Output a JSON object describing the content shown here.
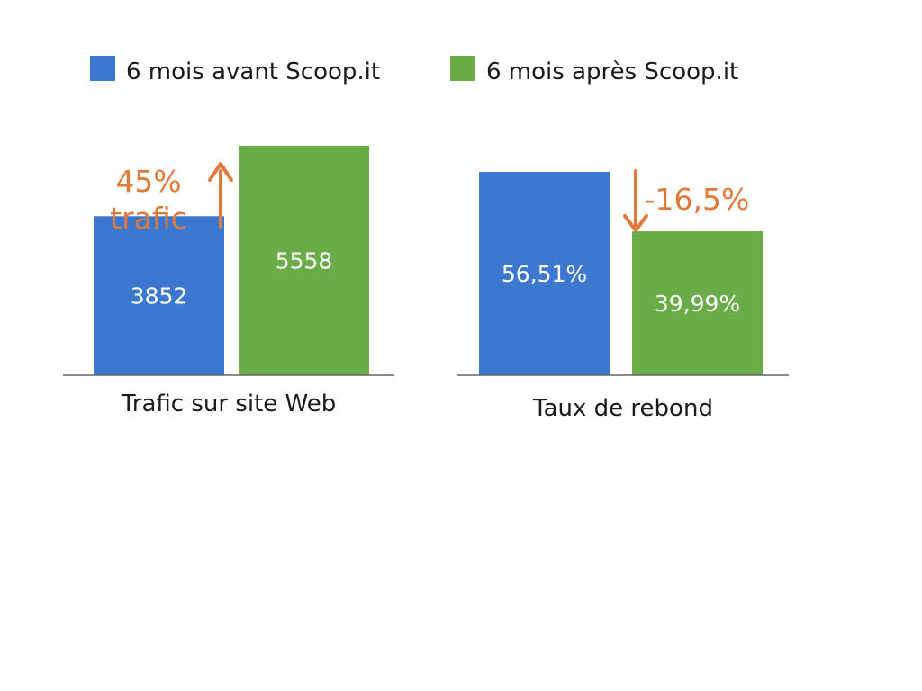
{
  "colors": {
    "before": "#3c78d0",
    "after": "#6aac48",
    "annotation": "#e07a3a",
    "baseline": "#666666"
  },
  "legend": [
    {
      "label": "6 mois avant Scoop.it",
      "color_key": "before"
    },
    {
      "label": "6 mois après Scoop.it",
      "color_key": "after"
    }
  ],
  "chart_data": [
    {
      "type": "bar",
      "xlabel": "Trafic sur site Web",
      "series": [
        {
          "name": "6 mois avant Scoop.it",
          "value": 3852,
          "label": "3852"
        },
        {
          "name": "6 mois après Scoop.it",
          "value": 5558,
          "label": "5558"
        }
      ],
      "annotation": {
        "direction": "up",
        "lines": [
          "45%",
          "trafic"
        ]
      }
    },
    {
      "type": "bar",
      "xlabel": "Taux de rebond",
      "series": [
        {
          "name": "6 mois avant Scoop.it",
          "value": 56.51,
          "label": "56,51%"
        },
        {
          "name": "6 mois après Scoop.it",
          "value": 39.99,
          "label": "39,99%"
        }
      ],
      "annotation": {
        "direction": "down",
        "lines": [
          "-16,5%"
        ]
      }
    }
  ]
}
